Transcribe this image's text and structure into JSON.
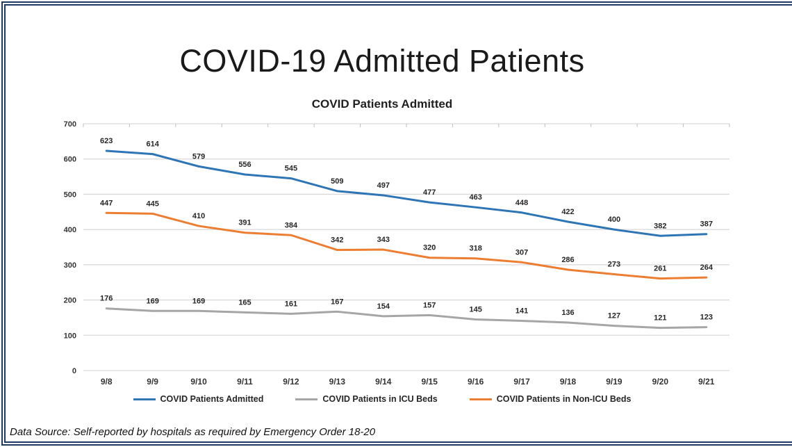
{
  "header": {
    "title": "COVID-19 Admitted Patients"
  },
  "chart_data": {
    "type": "line",
    "title": "COVID Patients Admitted",
    "x": [
      "9/8",
      "9/9",
      "9/10",
      "9/11",
      "9/12",
      "9/13",
      "9/14",
      "9/15",
      "9/16",
      "9/17",
      "9/18",
      "9/19",
      "9/20",
      "9/21"
    ],
    "ylim": [
      0,
      700
    ],
    "y_tick_step": 100,
    "grid": true,
    "legend_position": "bottom",
    "data_labels": true,
    "series": [
      {
        "name": "COVID Patients Admitted",
        "color": "#2E75B6",
        "values": [
          623,
          614,
          579,
          556,
          545,
          509,
          497,
          477,
          463,
          448,
          422,
          400,
          382,
          387
        ]
      },
      {
        "name": "COVID Patients in ICU Beds",
        "color": "#A6A6A6",
        "values": [
          176,
          169,
          169,
          165,
          161,
          167,
          154,
          157,
          145,
          141,
          136,
          127,
          121,
          123
        ]
      },
      {
        "name": "COVID Patients in Non-ICU Beds",
        "color": "#ED7D31",
        "values": [
          447,
          445,
          410,
          391,
          384,
          342,
          343,
          320,
          318,
          307,
          286,
          273,
          261,
          264
        ]
      }
    ]
  },
  "footer": {
    "note": "Data Source: Self-reported by hospitals as required by Emergency Order 18-20"
  },
  "colors": {
    "page_border": "#1F3864",
    "gridline": "#D9D9D9",
    "tick": "#BFBFBF",
    "axis_label": "#333333",
    "data_label": "#262626"
  }
}
